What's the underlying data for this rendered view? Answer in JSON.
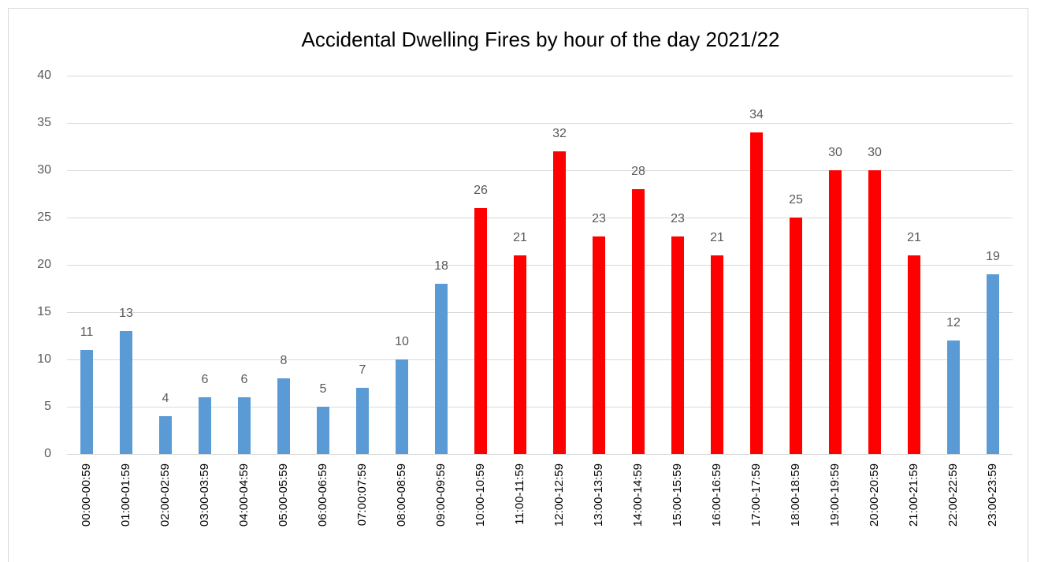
{
  "chart_data": {
    "type": "bar",
    "title": "Accidental Dwelling Fires by hour of the day 2021/22",
    "categories": [
      "00:00-00:59",
      "01:00-01:59",
      "02:00-02:59",
      "03:00-03:59",
      "04:00-04:59",
      "05:00-05:59",
      "06:00-06:59",
      "07:00:07:59",
      "08:00-08:59",
      "09:00-09:59",
      "10:00-10:59",
      "11:00-11:59",
      "12:00-12:59",
      "13:00-13:59",
      "14:00-14:59",
      "15:00-15:59",
      "16:00-16:59",
      "17:00-17:59",
      "18:00-18:59",
      "19:00-19:59",
      "20:00-20:59",
      "21:00-21:59",
      "22:00-22:59",
      "23:00-23:59"
    ],
    "values": [
      11,
      13,
      4,
      6,
      6,
      8,
      5,
      7,
      10,
      18,
      26,
      21,
      32,
      23,
      28,
      23,
      21,
      34,
      25,
      30,
      30,
      21,
      12,
      19
    ],
    "colors": [
      "#5b9bd5",
      "#5b9bd5",
      "#5b9bd5",
      "#5b9bd5",
      "#5b9bd5",
      "#5b9bd5",
      "#5b9bd5",
      "#5b9bd5",
      "#5b9bd5",
      "#5b9bd5",
      "#ff0000",
      "#ff0000",
      "#ff0000",
      "#ff0000",
      "#ff0000",
      "#ff0000",
      "#ff0000",
      "#ff0000",
      "#ff0000",
      "#ff0000",
      "#ff0000",
      "#ff0000",
      "#5b9bd5",
      "#5b9bd5"
    ],
    "ylim": [
      0,
      40
    ],
    "yticks": [
      0,
      5,
      10,
      15,
      20,
      25,
      30,
      35,
      40
    ],
    "grid": true
  }
}
